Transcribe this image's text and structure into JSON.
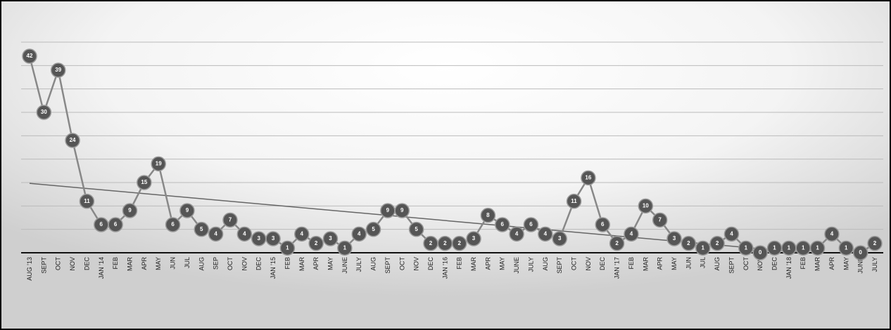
{
  "chart_data": {
    "type": "line",
    "categories": [
      "AUG '13",
      "SEPT",
      "OCT",
      "NOV",
      "DEC",
      "JAN '14",
      "FEB",
      "MAR",
      "APR",
      "MAY",
      "JUN",
      "JUL",
      "AUG",
      "SEP",
      "OCT",
      "NOV",
      "DEC",
      "JAN '15",
      "FEB",
      "MAR",
      "APR",
      "MAY",
      "JUNE",
      "JULY",
      "AUG",
      "SEPT",
      "OCT",
      "NOV",
      "DEC",
      "JAN '16",
      "FEB",
      "MAR",
      "APR",
      "MAY",
      "JUNE",
      "JULY",
      "AUG",
      "SEPT",
      "OCT",
      "NOV",
      "DEC",
      "JAN '17",
      "FEB",
      "MAR",
      "APR",
      "MAY",
      "JUN",
      "JUL",
      "AUG",
      "SEPT",
      "OCT",
      "NOV",
      "DEC",
      "JAN '18",
      "FEB",
      "MAR",
      "APR",
      "MAY",
      "JUNE",
      "JULY"
    ],
    "values": [
      42,
      30,
      39,
      24,
      11,
      6,
      6,
      9,
      15,
      19,
      6,
      9,
      5,
      4,
      7,
      4,
      3,
      3,
      1,
      4,
      2,
      3,
      1,
      4,
      5,
      9,
      9,
      5,
      2,
      2,
      2,
      3,
      8,
      6,
      4,
      6,
      4,
      3,
      11,
      16,
      6,
      2,
      4,
      10,
      7,
      3,
      2,
      1,
      2,
      4,
      1,
      0,
      1,
      1,
      1,
      1,
      4,
      1,
      0,
      2
    ],
    "color": "#555555",
    "ylim": [
      0,
      45
    ],
    "yticks": [
      0,
      5,
      10,
      15,
      20,
      25,
      30,
      35,
      40,
      45
    ],
    "grid": true,
    "trendline": true
  }
}
